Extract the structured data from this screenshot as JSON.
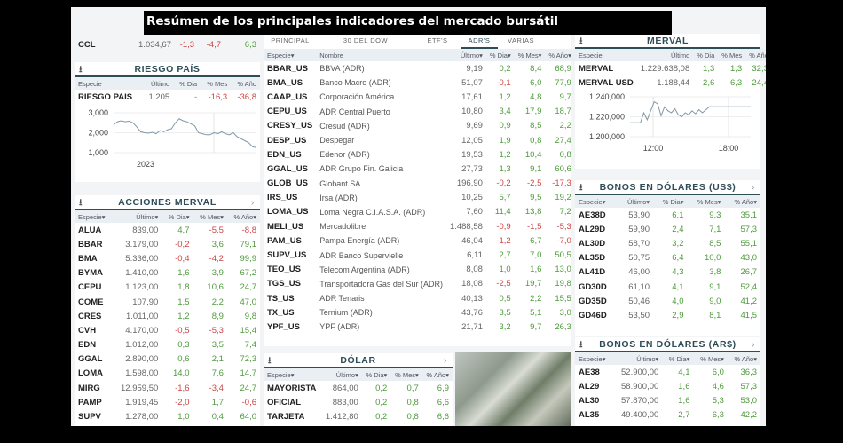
{
  "title": "Resúmen de los principales indicadores del mercado bursátil",
  "colors": {
    "positive": "#4f9a3d",
    "negative": "#c44444",
    "header_border": "#2f4d57",
    "header_bg": "#e9eff2"
  },
  "ccl": {
    "especie": "CCL",
    "ultimo": "1.034,67",
    "dia": "-1,3",
    "mes": "-4,7",
    "anio": "6,3"
  },
  "riesgo": {
    "title": "RIESGO PAÍS",
    "icon": "download-icon",
    "columns": [
      "Especie",
      "Último",
      "% Dia",
      "% Mes",
      "% Año"
    ],
    "rows": [
      [
        "RIESGO PAIS",
        "1.205",
        "-",
        "-16,3",
        "-36,8"
      ]
    ],
    "chart": {
      "type": "line",
      "y_ticks": [
        "3,000",
        "2,000",
        "1,000"
      ],
      "ylim": [
        1000,
        3000
      ],
      "x_labels": [
        "2023"
      ],
      "values": [
        2400,
        2550,
        2600,
        2550,
        2580,
        2500,
        2300,
        2050,
        2000,
        1980,
        2020,
        1950,
        2100,
        2050,
        2150,
        2200,
        2500,
        2700,
        2600,
        2550,
        2450,
        2350,
        2000,
        1950,
        1900,
        1900,
        2000,
        1950,
        2050,
        1950,
        1900,
        2000,
        1800,
        1700,
        1600,
        1500,
        1300,
        1250
      ]
    }
  },
  "acciones": {
    "title": "ACCIONES MERVAL",
    "columns": [
      "Especie",
      "Último",
      "% Dia",
      "% Mes",
      "% Año"
    ],
    "rows": [
      [
        "ALUA",
        "839,00",
        "4,7",
        "-5,5",
        "-8,8"
      ],
      [
        "BBAR",
        "3.179,00",
        "-0,2",
        "3,6",
        "79,1"
      ],
      [
        "BMA",
        "5.336,00",
        "-0,4",
        "-4,2",
        "99,9"
      ],
      [
        "BYMA",
        "1.410,00",
        "1,6",
        "3,9",
        "67,2"
      ],
      [
        "CEPU",
        "1.123,00",
        "1,8",
        "10,6",
        "24,7"
      ],
      [
        "COME",
        "107,90",
        "1,5",
        "2,2",
        "47,0"
      ],
      [
        "CRES",
        "1.011,00",
        "1,2",
        "8,9",
        "9,8"
      ],
      [
        "CVH",
        "4.170,00",
        "-0,5",
        "-5,3",
        "15,4"
      ],
      [
        "EDN",
        "1.012,00",
        "0,3",
        "3,5",
        "7,4"
      ],
      [
        "GGAL",
        "2.890,00",
        "0,6",
        "2,1",
        "72,3"
      ],
      [
        "LOMA",
        "1.598,00",
        "14,0",
        "7,6",
        "14,7"
      ],
      [
        "MIRG",
        "12.959,50",
        "-1,6",
        "-3,4",
        "24,7"
      ],
      [
        "PAMP",
        "1.919,45",
        "-2,0",
        "1,7",
        "-0,6"
      ],
      [
        "SUPV",
        "1.278,00",
        "1,0",
        "0,4",
        "64,0"
      ]
    ]
  },
  "adr": {
    "tabs": [
      "PRINCIPAL",
      "30 DEL DOW",
      "ETF'S",
      "ADR'S",
      "VARIAS"
    ],
    "active_tab": "ADR'S",
    "columns": [
      "Especie",
      "Nombre",
      "Último",
      "% Dia",
      "% Mes",
      "% Año"
    ],
    "rows": [
      [
        "BBAR_US",
        "BBVA (ADR)",
        "9,19",
        "0,2",
        "8,4",
        "68,9"
      ],
      [
        "BMA_US",
        "Banco Macro (ADR)",
        "51,07",
        "-0,1",
        "6,0",
        "77,9"
      ],
      [
        "CAAP_US",
        "Corporación América",
        "17,61",
        "1,2",
        "4,8",
        "9,7"
      ],
      [
        "CEPU_US",
        "ADR Central Puerto",
        "10,80",
        "3,4",
        "17,9",
        "18,7"
      ],
      [
        "CRESY_US",
        "Cresud (ADR)",
        "9,69",
        "0,9",
        "8,5",
        "2,2"
      ],
      [
        "DESP_US",
        "Despegar",
        "12,05",
        "1,9",
        "0,8",
        "27,4"
      ],
      [
        "EDN_US",
        "Edenor (ADR)",
        "19,53",
        "1,2",
        "10,4",
        "0,8"
      ],
      [
        "GGAL_US",
        "ADR Grupo Fin. Galicia",
        "27,73",
        "1,3",
        "9,1",
        "60,6"
      ],
      [
        "GLOB_US",
        "Globant SA",
        "196,90",
        "-0,2",
        "-2,5",
        "-17,3"
      ],
      [
        "IRS_US",
        "Irsa (ADR)",
        "10,25",
        "5,7",
        "9,5",
        "19,2"
      ],
      [
        "LOMA_US",
        "Loma Negra C.I.A.S.A. (ADR)",
        "7,60",
        "11,4",
        "13,8",
        "7,2"
      ],
      [
        "MELI_US",
        "Mercadolibre",
        "1.488,58",
        "-0,9",
        "-1,5",
        "-5,3"
      ],
      [
        "PAM_US",
        "Pampa Energía (ADR)",
        "46,04",
        "-1,2",
        "6,7",
        "-7,0"
      ],
      [
        "SUPV_US",
        "ADR Banco Supervielle",
        "6,11",
        "2,7",
        "7,0",
        "50,5"
      ],
      [
        "TEO_US",
        "Telecom Argentina (ADR)",
        "8,08",
        "1,0",
        "1,6",
        "13,0"
      ],
      [
        "TGS_US",
        "Transportadora Gas del Sur (ADR)",
        "18,08",
        "-2,5",
        "19,7",
        "19,8"
      ],
      [
        "TS_US",
        "ADR Tenaris",
        "40,13",
        "0,5",
        "2,2",
        "15,5"
      ],
      [
        "TX_US",
        "Ternium (ADR)",
        "43,76",
        "3,5",
        "5,1",
        "3,0"
      ],
      [
        "YPF_US",
        "YPF (ADR)",
        "21,71",
        "3,2",
        "9,7",
        "26,3"
      ]
    ]
  },
  "dolar": {
    "title": "DÓLAR",
    "columns": [
      "Especie",
      "Último",
      "% Dia",
      "% Mes",
      "% Año"
    ],
    "rows": [
      [
        "MAYORISTA",
        "864,00",
        "0,2",
        "0,7",
        "6,9"
      ],
      [
        "OFICIAL",
        "883,00",
        "0,2",
        "0,8",
        "6,6"
      ],
      [
        "TARJETA",
        "1.412,80",
        "0,2",
        "0,8",
        "6,6"
      ]
    ]
  },
  "merval": {
    "title": "MERVAL",
    "columns": [
      "Especie",
      "Último",
      "% Dia",
      "% Mes",
      "% Año"
    ],
    "rows": [
      [
        "MERVAL",
        "1.229.638,08",
        "1,3",
        "1,3",
        "32,3"
      ],
      [
        "MERVAL USD",
        "1.188,44",
        "2,6",
        "6,3",
        "24,4"
      ]
    ],
    "chart": {
      "type": "line",
      "y_ticks": [
        "1,240,000",
        "1,220,000",
        "1,200,000"
      ],
      "ylim": [
        1200000,
        1240000
      ],
      "x_labels": [
        "12:00",
        "18:00"
      ],
      "values": [
        1214000,
        1214000,
        1214000,
        1214000,
        1224000,
        1217000,
        1226000,
        1235000,
        1233000,
        1221000,
        1230000,
        1226000,
        1224000,
        1228000,
        1222000,
        1220000,
        1224000,
        1222000,
        1226000,
        1223000,
        1227000,
        1224000,
        1227000,
        1230000,
        1230000,
        1230000,
        1230000,
        1230000,
        1230000,
        1230000,
        1230000,
        1230000,
        1230000,
        1230000,
        1230000,
        1230000
      ]
    }
  },
  "bonos_usd": {
    "title": "BONOS EN DÓLARES (US$)",
    "columns": [
      "Especie",
      "Último",
      "% Dia",
      "% Mes",
      "% Año"
    ],
    "rows": [
      [
        "AE38D",
        "53,90",
        "6,1",
        "9,3",
        "35,1"
      ],
      [
        "AL29D",
        "59,90",
        "2,4",
        "7,1",
        "57,3"
      ],
      [
        "AL30D",
        "58,70",
        "3,2",
        "8,5",
        "55,1"
      ],
      [
        "AL35D",
        "50,75",
        "6,4",
        "10,0",
        "43,0"
      ],
      [
        "AL41D",
        "46,00",
        "4,3",
        "3,8",
        "26,7"
      ],
      [
        "GD30D",
        "61,10",
        "4,1",
        "9,1",
        "52,4"
      ],
      [
        "GD35D",
        "50,46",
        "4,0",
        "9,0",
        "41,2"
      ],
      [
        "GD46D",
        "53,50",
        "2,9",
        "8,1",
        "41,5"
      ]
    ]
  },
  "bonos_ars": {
    "title": "BONOS EN DÓLARES (AR$)",
    "columns": [
      "Especie",
      "Último",
      "% Dia",
      "% Mes",
      "% Año"
    ],
    "rows": [
      [
        "AE38",
        "52.900,00",
        "4,1",
        "6,0",
        "36,3"
      ],
      [
        "AL29",
        "58.900,00",
        "1,6",
        "4,6",
        "57,3"
      ],
      [
        "AL30",
        "57.870,00",
        "1,6",
        "5,3",
        "53,0"
      ],
      [
        "AL35",
        "49.400,00",
        "2,7",
        "6,3",
        "42,2"
      ]
    ]
  },
  "icons": {
    "download": "⭳",
    "chevron": "›",
    "sort": "▾"
  }
}
